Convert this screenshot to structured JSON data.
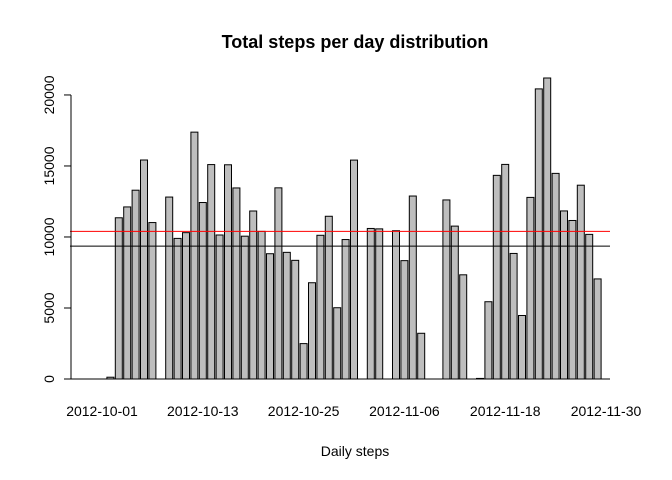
{
  "chart_data": {
    "type": "bar",
    "title": "Total steps per day distribution",
    "xlabel": "Daily steps",
    "ylabel": "",
    "ylim": [
      0,
      21194
    ],
    "yticks": [
      0,
      5000,
      10000,
      15000,
      20000
    ],
    "categories": [
      "2012-10-01",
      "2012-10-02",
      "2012-10-03",
      "2012-10-04",
      "2012-10-05",
      "2012-10-06",
      "2012-10-07",
      "2012-10-08",
      "2012-10-09",
      "2012-10-10",
      "2012-10-11",
      "2012-10-12",
      "2012-10-13",
      "2012-10-14",
      "2012-10-15",
      "2012-10-16",
      "2012-10-17",
      "2012-10-18",
      "2012-10-19",
      "2012-10-20",
      "2012-10-21",
      "2012-10-22",
      "2012-10-23",
      "2012-10-24",
      "2012-10-25",
      "2012-10-26",
      "2012-10-27",
      "2012-10-28",
      "2012-10-29",
      "2012-10-30",
      "2012-10-31",
      "2012-11-01",
      "2012-11-02",
      "2012-11-03",
      "2012-11-04",
      "2012-11-05",
      "2012-11-06",
      "2012-11-07",
      "2012-11-08",
      "2012-11-09",
      "2012-11-10",
      "2012-11-11",
      "2012-11-12",
      "2012-11-13",
      "2012-11-14",
      "2012-11-15",
      "2012-11-16",
      "2012-11-17",
      "2012-11-18",
      "2012-11-19",
      "2012-11-20",
      "2012-11-21",
      "2012-11-22",
      "2012-11-23",
      "2012-11-24",
      "2012-11-25",
      "2012-11-26",
      "2012-11-27",
      "2012-11-28",
      "2012-11-29",
      "2012-11-30"
    ],
    "values": [
      0,
      126,
      11352,
      12116,
      13294,
      15420,
      11015,
      0,
      12811,
      9900,
      10304,
      17382,
      12426,
      15098,
      10139,
      15084,
      13452,
      10056,
      11829,
      10395,
      8821,
      13460,
      8918,
      8355,
      2492,
      6778,
      10119,
      11458,
      5018,
      9819,
      15414,
      0,
      10600,
      10571,
      0,
      10439,
      8334,
      12883,
      3219,
      0,
      0,
      12608,
      10765,
      7336,
      0,
      41,
      5441,
      14339,
      15110,
      8841,
      4472,
      12787,
      20427,
      21194,
      14478,
      11834,
      11162,
      13646,
      10183,
      7047,
      0
    ],
    "xtick_labels": [
      "2012-10-01",
      "2012-10-13",
      "2012-10-25",
      "2012-11-06",
      "2012-11-18",
      "2012-11-30"
    ],
    "xtick_indices": [
      0,
      12,
      24,
      36,
      48,
      60
    ],
    "reference_lines": [
      {
        "value": 10395,
        "color": "#ff0000"
      },
      {
        "value": 9354,
        "color": "#000000"
      }
    ],
    "bar_fill": "#bebebe",
    "grid": false,
    "legend": "none"
  }
}
